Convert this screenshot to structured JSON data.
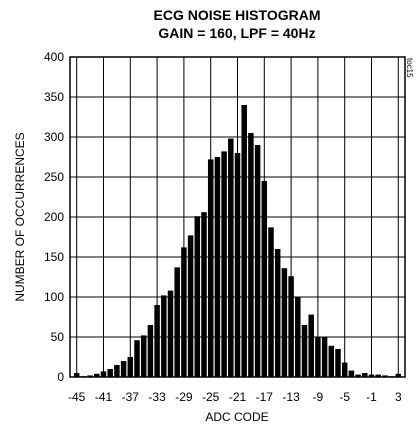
{
  "chart_data": {
    "type": "bar",
    "title": "ECG NOISE HISTOGRAM",
    "subtitle": "GAIN = 160, LPF = 40Hz",
    "xlabel": "ADC CODE",
    "ylabel": "NUMBER OF OCCURRENCES",
    "side_code": "toc15",
    "grid": true,
    "xlim": [
      -46,
      4
    ],
    "ylim": [
      0,
      400
    ],
    "xticks": [
      -45,
      -41,
      -37,
      -33,
      -29,
      -25,
      -21,
      -17,
      -13,
      -9,
      -5,
      -1,
      3
    ],
    "yticks": [
      0,
      50,
      100,
      150,
      200,
      250,
      300,
      350,
      400
    ],
    "x": [
      -45,
      -44,
      -43,
      -42,
      -41,
      -40,
      -39,
      -38,
      -37,
      -36,
      -35,
      -34,
      -33,
      -32,
      -31,
      -30,
      -29,
      -28,
      -27,
      -26,
      -25,
      -24,
      -23,
      -22,
      -21,
      -20,
      -19,
      -18,
      -17,
      -16,
      -15,
      -14,
      -13,
      -12,
      -11,
      -10,
      -9,
      -8,
      -7,
      -6,
      -5,
      -4,
      -3,
      -2,
      -1,
      0,
      1,
      2,
      3
    ],
    "values": [
      5,
      1,
      2,
      4,
      7,
      10,
      15,
      20,
      25,
      46,
      52,
      65,
      90,
      102,
      108,
      137,
      162,
      177,
      201,
      206,
      272,
      275,
      282,
      298,
      280,
      340,
      305,
      290,
      245,
      187,
      160,
      136,
      126,
      100,
      65,
      78,
      50,
      50,
      39,
      35,
      18,
      8,
      3,
      5,
      3,
      3,
      2,
      1,
      4
    ],
    "bar_color": "#000000"
  }
}
